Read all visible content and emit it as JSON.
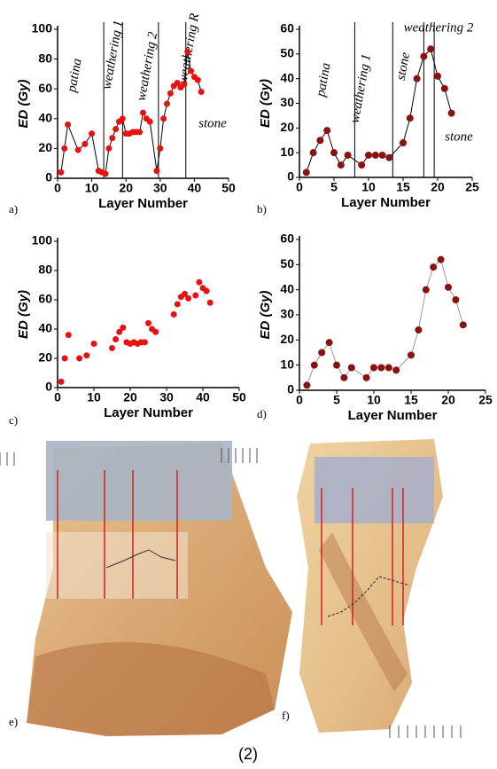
{
  "chart_data": [
    {
      "type": "scatter",
      "panel": "a)",
      "xlabel": "Layer Number",
      "ylabel": "ED (Gy)",
      "color": "#e8110f",
      "line": true,
      "line_color": "#000000",
      "xlim": [
        0,
        50
      ],
      "xticks": [
        0,
        10,
        20,
        30,
        40,
        50
      ],
      "ylim": [
        0,
        100
      ],
      "yticks": [
        0,
        20,
        40,
        60,
        80,
        100
      ],
      "x": [
        1,
        2,
        3,
        6,
        8,
        10,
        12,
        13,
        14,
        15,
        16,
        17,
        18,
        19,
        20,
        21,
        22,
        23,
        24,
        25,
        26,
        27,
        29,
        30,
        31,
        32,
        33,
        34,
        35,
        36,
        37,
        38,
        39,
        40,
        41,
        42
      ],
      "values": [
        4,
        20,
        36,
        19,
        23,
        30,
        5,
        4,
        3,
        20,
        27,
        33,
        38,
        40,
        30,
        30,
        31,
        31,
        31,
        44,
        40,
        38,
        5,
        20,
        40,
        50,
        57,
        62,
        64,
        61,
        63,
        85,
        72,
        68,
        66,
        58
      ],
      "vlines": [
        13.5,
        19,
        29.5,
        37.5
      ],
      "annotations": [
        "patina",
        "weathering 1",
        "weathering 2",
        "weathering R",
        "stone"
      ]
    },
    {
      "type": "scatter",
      "panel": "b)",
      "xlabel": "Layer Number",
      "ylabel": "ED (Gy)",
      "color": "#8b1010",
      "line": true,
      "line_color": "#000000",
      "xlim": [
        0,
        25
      ],
      "xticks": [
        0,
        5,
        10,
        15,
        20,
        25
      ],
      "ylim": [
        0,
        60
      ],
      "yticks": [
        0,
        10,
        20,
        30,
        40,
        50,
        60
      ],
      "x": [
        1,
        2,
        3,
        4,
        5,
        6,
        7,
        9,
        10,
        11,
        12,
        13,
        15,
        16,
        17,
        18,
        19,
        20,
        21,
        22
      ],
      "values": [
        2,
        10,
        15,
        19,
        10,
        5,
        9,
        5,
        9,
        9,
        9,
        8,
        14,
        24,
        40,
        49,
        52,
        41,
        36,
        26
      ],
      "vlines": [
        8,
        13.5,
        18,
        19.5
      ],
      "annotations": [
        "patina",
        "weathering 1",
        "stone",
        "weathering 2",
        "stone"
      ]
    },
    {
      "type": "scatter",
      "panel": "c)",
      "xlabel": "Layer Number",
      "ylabel": "ED (Gy)",
      "color": "#e8110f",
      "line": false,
      "line_color": "#000000",
      "xlim": [
        0,
        50
      ],
      "xticks": [
        0,
        10,
        20,
        30,
        40,
        50
      ],
      "ylim": [
        0,
        100
      ],
      "yticks": [
        0,
        20,
        40,
        60,
        80,
        100
      ],
      "x": [
        1,
        2,
        3,
        6,
        8,
        10,
        15,
        16,
        17,
        18,
        19,
        20,
        21,
        22,
        23,
        24,
        25,
        26,
        27,
        32,
        33,
        34,
        35,
        36,
        38,
        39,
        40,
        41,
        42
      ],
      "values": [
        4,
        20,
        36,
        20,
        22,
        30,
        27,
        33,
        38,
        41,
        31,
        30,
        31,
        30,
        31,
        31,
        44,
        40,
        38,
        50,
        57,
        62,
        64,
        61,
        63,
        72,
        68,
        66,
        58
      ],
      "vlines": [],
      "annotations": []
    },
    {
      "type": "scatter",
      "panel": "d)",
      "xlabel": "Layer Number",
      "ylabel": "ED (Gy)",
      "color": "#8b1010",
      "line": true,
      "line_color": "#9a9a9a",
      "xlim": [
        0,
        25
      ],
      "xticks": [
        0,
        5,
        10,
        15,
        20,
        25
      ],
      "ylim": [
        0,
        60
      ],
      "yticks": [
        0,
        10,
        20,
        30,
        40,
        50,
        60
      ],
      "x": [
        1,
        2,
        3,
        4,
        5,
        6,
        7,
        9,
        10,
        11,
        12,
        13,
        15,
        16,
        17,
        18,
        19,
        20,
        21,
        22
      ],
      "values": [
        2,
        10,
        15,
        19,
        10,
        5,
        9,
        5,
        9,
        9,
        9,
        8,
        14,
        24,
        40,
        49,
        52,
        41,
        36,
        26
      ],
      "vlines": [],
      "annotations": []
    }
  ],
  "photos": [
    {
      "label": "e)"
    },
    {
      "label": "f)"
    }
  ],
  "caption": "(2)"
}
